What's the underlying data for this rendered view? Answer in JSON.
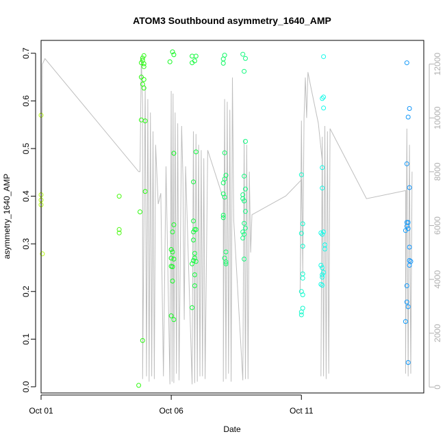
{
  "chart_data": {
    "type": "scatter",
    "title": "ATOM3 Southbound asymmetry_1640_AMP",
    "xlabel": "Date",
    "ylabel": "asymmetry_1640_AMP",
    "x_ticks": [
      "Oct 01",
      "Oct 06",
      "Oct 11"
    ],
    "y_ticks": [
      "0.0",
      "0.1",
      "0.2",
      "0.3",
      "0.4",
      "0.5",
      "0.6",
      "0.7"
    ],
    "y2_ticks": [
      "0",
      "2000",
      "4000",
      "6000",
      "8000",
      "10000",
      "12000"
    ],
    "xlim": [
      0,
      14.7
    ],
    "ylim": [
      -0.013,
      0.727
    ],
    "y2lim": [
      -220,
      12880
    ],
    "grid": false,
    "series": [
      {
        "color_style": "day-gradient",
        "points": [
          {
            "x": 0.0,
            "y": 0.57
          },
          {
            "x": 0.0,
            "y": 0.403
          },
          {
            "x": 0.0,
            "y": 0.392
          },
          {
            "x": 0.0,
            "y": 0.382
          },
          {
            "x": 0.05,
            "y": 0.279
          },
          {
            "x": 3.0,
            "y": 0.4
          },
          {
            "x": 3.0,
            "y": 0.33
          },
          {
            "x": 3.0,
            "y": 0.323
          },
          {
            "x": 3.75,
            "y": 0.003
          },
          {
            "x": 3.8,
            "y": 0.367
          },
          {
            "x": 3.85,
            "y": 0.65
          },
          {
            "x": 3.85,
            "y": 0.56
          },
          {
            "x": 3.9,
            "y": 0.097
          },
          {
            "x": 3.85,
            "y": 0.68
          },
          {
            "x": 3.9,
            "y": 0.69
          },
          {
            "x": 3.9,
            "y": 0.685
          },
          {
            "x": 3.95,
            "y": 0.695
          },
          {
            "x": 3.95,
            "y": 0.678
          },
          {
            "x": 3.95,
            "y": 0.672
          },
          {
            "x": 3.9,
            "y": 0.635
          },
          {
            "x": 3.95,
            "y": 0.627
          },
          {
            "x": 3.95,
            "y": 0.645
          },
          {
            "x": 4.0,
            "y": 0.558
          },
          {
            "x": 4.0,
            "y": 0.41
          },
          {
            "x": 4.95,
            "y": 0.682
          },
          {
            "x": 5.05,
            "y": 0.703
          },
          {
            "x": 5.1,
            "y": 0.697
          },
          {
            "x": 5.1,
            "y": 0.49
          },
          {
            "x": 5.1,
            "y": 0.34
          },
          {
            "x": 5.05,
            "y": 0.325
          },
          {
            "x": 5.0,
            "y": 0.288
          },
          {
            "x": 5.05,
            "y": 0.283
          },
          {
            "x": 5.0,
            "y": 0.27
          },
          {
            "x": 5.1,
            "y": 0.268
          },
          {
            "x": 5.0,
            "y": 0.253
          },
          {
            "x": 5.05,
            "y": 0.252
          },
          {
            "x": 5.05,
            "y": 0.222
          },
          {
            "x": 5.0,
            "y": 0.149
          },
          {
            "x": 5.1,
            "y": 0.141
          },
          {
            "x": 5.8,
            "y": 0.694
          },
          {
            "x": 5.95,
            "y": 0.694
          },
          {
            "x": 5.8,
            "y": 0.68
          },
          {
            "x": 5.9,
            "y": 0.684
          },
          {
            "x": 5.95,
            "y": 0.493
          },
          {
            "x": 5.85,
            "y": 0.43
          },
          {
            "x": 5.85,
            "y": 0.348
          },
          {
            "x": 5.9,
            "y": 0.33
          },
          {
            "x": 5.95,
            "y": 0.33
          },
          {
            "x": 5.85,
            "y": 0.325
          },
          {
            "x": 5.85,
            "y": 0.308
          },
          {
            "x": 5.9,
            "y": 0.28
          },
          {
            "x": 5.9,
            "y": 0.27
          },
          {
            "x": 5.85,
            "y": 0.265
          },
          {
            "x": 5.95,
            "y": 0.263
          },
          {
            "x": 5.8,
            "y": 0.258
          },
          {
            "x": 5.9,
            "y": 0.235
          },
          {
            "x": 5.9,
            "y": 0.212
          },
          {
            "x": 5.8,
            "y": 0.166
          },
          {
            "x": 7.0,
            "y": 0.688
          },
          {
            "x": 7.05,
            "y": 0.696
          },
          {
            "x": 7.0,
            "y": 0.679
          },
          {
            "x": 7.05,
            "y": 0.491
          },
          {
            "x": 7.1,
            "y": 0.444
          },
          {
            "x": 7.05,
            "y": 0.436
          },
          {
            "x": 7.0,
            "y": 0.428
          },
          {
            "x": 7.0,
            "y": 0.405
          },
          {
            "x": 7.05,
            "y": 0.398
          },
          {
            "x": 7.0,
            "y": 0.36
          },
          {
            "x": 7.0,
            "y": 0.355
          },
          {
            "x": 7.1,
            "y": 0.283
          },
          {
            "x": 7.05,
            "y": 0.27
          },
          {
            "x": 7.1,
            "y": 0.262
          },
          {
            "x": 7.1,
            "y": 0.258
          },
          {
            "x": 7.75,
            "y": 0.698
          },
          {
            "x": 7.85,
            "y": 0.689
          },
          {
            "x": 7.8,
            "y": 0.662
          },
          {
            "x": 7.85,
            "y": 0.515
          },
          {
            "x": 7.8,
            "y": 0.442
          },
          {
            "x": 7.85,
            "y": 0.415
          },
          {
            "x": 7.75,
            "y": 0.403
          },
          {
            "x": 7.8,
            "y": 0.39
          },
          {
            "x": 7.75,
            "y": 0.395
          },
          {
            "x": 7.85,
            "y": 0.368
          },
          {
            "x": 7.8,
            "y": 0.343
          },
          {
            "x": 7.85,
            "y": 0.333
          },
          {
            "x": 7.75,
            "y": 0.325
          },
          {
            "x": 7.8,
            "y": 0.32
          },
          {
            "x": 7.75,
            "y": 0.312
          },
          {
            "x": 7.8,
            "y": 0.268
          },
          {
            "x": 10.0,
            "y": 0.445
          },
          {
            "x": 10.05,
            "y": 0.342
          },
          {
            "x": 10.0,
            "y": 0.322
          },
          {
            "x": 10.05,
            "y": 0.295
          },
          {
            "x": 10.05,
            "y": 0.237
          },
          {
            "x": 10.05,
            "y": 0.228
          },
          {
            "x": 10.0,
            "y": 0.2
          },
          {
            "x": 10.05,
            "y": 0.193
          },
          {
            "x": 10.05,
            "y": 0.165
          },
          {
            "x": 10.0,
            "y": 0.157
          },
          {
            "x": 10.0,
            "y": 0.151
          },
          {
            "x": 10.85,
            "y": 0.693
          },
          {
            "x": 10.85,
            "y": 0.608
          },
          {
            "x": 10.8,
            "y": 0.605
          },
          {
            "x": 10.85,
            "y": 0.585
          },
          {
            "x": 10.8,
            "y": 0.46
          },
          {
            "x": 10.8,
            "y": 0.417
          },
          {
            "x": 10.85,
            "y": 0.325
          },
          {
            "x": 10.75,
            "y": 0.323
          },
          {
            "x": 10.8,
            "y": 0.32
          },
          {
            "x": 10.9,
            "y": 0.298
          },
          {
            "x": 10.9,
            "y": 0.289
          },
          {
            "x": 10.75,
            "y": 0.255
          },
          {
            "x": 10.8,
            "y": 0.25
          },
          {
            "x": 10.85,
            "y": 0.24
          },
          {
            "x": 10.8,
            "y": 0.235
          },
          {
            "x": 10.8,
            "y": 0.23
          },
          {
            "x": 10.75,
            "y": 0.215
          },
          {
            "x": 10.8,
            "y": 0.213
          },
          {
            "x": 14.05,
            "y": 0.68
          },
          {
            "x": 14.15,
            "y": 0.584
          },
          {
            "x": 14.1,
            "y": 0.566
          },
          {
            "x": 14.05,
            "y": 0.468
          },
          {
            "x": 14.15,
            "y": 0.418
          },
          {
            "x": 14.05,
            "y": 0.345
          },
          {
            "x": 14.1,
            "y": 0.345
          },
          {
            "x": 14.05,
            "y": 0.337
          },
          {
            "x": 14.1,
            "y": 0.332
          },
          {
            "x": 14.0,
            "y": 0.328
          },
          {
            "x": 14.15,
            "y": 0.293
          },
          {
            "x": 14.15,
            "y": 0.265
          },
          {
            "x": 14.2,
            "y": 0.263
          },
          {
            "x": 14.15,
            "y": 0.255
          },
          {
            "x": 14.05,
            "y": 0.212
          },
          {
            "x": 14.05,
            "y": 0.178
          },
          {
            "x": 14.1,
            "y": 0.168
          },
          {
            "x": 14.0,
            "y": 0.137
          },
          {
            "x": 14.1,
            "y": 0.051
          }
        ]
      },
      {
        "axis": "right",
        "color": "#bebebe",
        "line": [
          [
            0.0,
            1500
          ],
          [
            0.05,
            12000
          ],
          [
            0.15,
            12200
          ],
          [
            3.75,
            8000
          ],
          [
            3.8,
            8000
          ],
          [
            3.85,
            12250
          ],
          [
            3.9,
            10500
          ],
          [
            3.9,
            300
          ],
          [
            4.0,
            11200
          ],
          [
            4.05,
            400
          ],
          [
            4.1,
            10700
          ],
          [
            4.15,
            200
          ],
          [
            4.2,
            10200
          ],
          [
            4.25,
            400
          ],
          [
            4.3,
            9500
          ],
          [
            4.35,
            300
          ],
          [
            4.4,
            9000
          ],
          [
            4.5,
            6800
          ],
          [
            4.6,
            7200
          ],
          [
            4.7,
            400
          ],
          [
            4.8,
            8200
          ],
          [
            4.95,
            100
          ],
          [
            5.0,
            11000
          ],
          [
            5.03,
            200
          ],
          [
            5.07,
            10900
          ],
          [
            5.1,
            150
          ],
          [
            5.15,
            10200
          ],
          [
            5.2,
            500
          ],
          [
            5.25,
            9800
          ],
          [
            5.3,
            250
          ],
          [
            5.4,
            9700
          ],
          [
            5.45,
            7800
          ],
          [
            5.5,
            2500
          ],
          [
            5.55,
            8200
          ],
          [
            5.8,
            100
          ],
          [
            5.85,
            9500
          ],
          [
            5.9,
            150
          ],
          [
            5.95,
            9400
          ],
          [
            6.0,
            200
          ],
          [
            6.05,
            9000
          ],
          [
            6.1,
            400
          ],
          [
            6.15,
            8800
          ],
          [
            6.2,
            400
          ],
          [
            6.25,
            8500
          ],
          [
            6.3,
            300
          ],
          [
            6.4,
            8800
          ],
          [
            7.0,
            7000
          ],
          [
            7.0,
            200
          ],
          [
            7.05,
            10700
          ],
          [
            7.1,
            300
          ],
          [
            7.15,
            10600
          ],
          [
            7.2,
            500
          ],
          [
            7.25,
            10300
          ],
          [
            7.3,
            200
          ],
          [
            7.35,
            11500
          ],
          [
            7.4,
            6200
          ],
          [
            7.75,
            250
          ],
          [
            7.8,
            9200
          ],
          [
            7.85,
            300
          ],
          [
            7.9,
            9000
          ],
          [
            7.95,
            300
          ],
          [
            8.0,
            8000
          ],
          [
            8.05,
            5000
          ],
          [
            8.1,
            6400
          ],
          [
            9.4,
            7100
          ],
          [
            10.0,
            7700
          ],
          [
            9.95,
            3500
          ],
          [
            10.0,
            9900
          ],
          [
            10.05,
            4200
          ],
          [
            10.1,
            10000
          ],
          [
            10.15,
            11500
          ],
          [
            10.2,
            10000
          ],
          [
            10.25,
            11700
          ],
          [
            10.35,
            11200
          ],
          [
            10.65,
            9800
          ],
          [
            10.8,
            8400
          ],
          [
            10.75,
            400
          ],
          [
            10.8,
            9300
          ],
          [
            10.85,
            400
          ],
          [
            10.9,
            9700
          ],
          [
            10.95,
            300
          ],
          [
            11.0,
            9500
          ],
          [
            11.05,
            500
          ],
          [
            11.1,
            9600
          ],
          [
            12.5,
            7000
          ],
          [
            14.0,
            7300
          ],
          [
            14.0,
            500
          ],
          [
            14.05,
            9600
          ],
          [
            14.1,
            400
          ],
          [
            14.15,
            9000
          ],
          [
            14.2,
            500
          ],
          [
            14.25,
            8000
          ]
        ]
      }
    ]
  }
}
